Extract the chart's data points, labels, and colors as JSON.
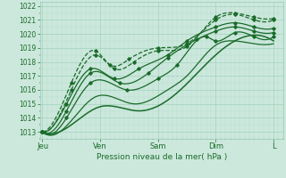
{
  "background_color": "#cce8dc",
  "grid_major_color": "#99ccb8",
  "grid_minor_color": "#b8ddd0",
  "line_color": "#1a6b2a",
  "xlabel": "Pression niveau de la mer( hPa )",
  "yticks": [
    1013,
    1014,
    1015,
    1016,
    1017,
    1018,
    1019,
    1020,
    1021,
    1022
  ],
  "ylim": [
    1012.5,
    1022.3
  ],
  "xtick_labels": [
    "Jeu",
    "Ven",
    "Sam",
    "Dim",
    "L"
  ],
  "xtick_positions": [
    0,
    24,
    48,
    72,
    96
  ],
  "xlim": [
    -1,
    100
  ],
  "curves": [
    {
      "points_x": [
        0,
        12,
        22,
        28,
        36,
        48,
        60,
        72,
        80,
        88,
        96
      ],
      "points_y": [
        1013.0,
        1016.5,
        1018.8,
        1017.8,
        1018.2,
        1019.0,
        1019.3,
        1021.0,
        1021.4,
        1021.0,
        1021.0
      ],
      "ls": "--",
      "lw": 0.9,
      "marker": "D",
      "ms": 1.8
    },
    {
      "points_x": [
        0,
        12,
        22,
        30,
        38,
        48,
        60,
        72,
        80,
        88,
        96
      ],
      "points_y": [
        1013.0,
        1016.0,
        1018.5,
        1017.5,
        1018.0,
        1018.8,
        1019.1,
        1021.2,
        1021.5,
        1021.2,
        1021.1
      ],
      "ls": "--",
      "lw": 0.9,
      "marker": "D",
      "ms": 1.8
    },
    {
      "points_x": [
        0,
        10,
        20,
        30,
        40,
        52,
        60,
        72,
        80,
        88,
        96
      ],
      "points_y": [
        1013.0,
        1015.0,
        1017.5,
        1016.8,
        1017.5,
        1018.5,
        1019.5,
        1020.5,
        1020.8,
        1020.5,
        1020.4
      ],
      "ls": "-",
      "lw": 0.9,
      "marker": "D",
      "ms": 1.8
    },
    {
      "points_x": [
        0,
        10,
        20,
        32,
        44,
        52,
        64,
        72,
        80,
        88,
        96
      ],
      "points_y": [
        1013.0,
        1014.5,
        1017.2,
        1016.5,
        1017.2,
        1018.3,
        1019.6,
        1020.2,
        1020.5,
        1020.2,
        1020.1
      ],
      "ls": "-",
      "lw": 0.9,
      "marker": "D",
      "ms": 1.8
    },
    {
      "points_x": [
        0,
        10,
        20,
        35,
        48,
        56,
        68,
        72,
        80,
        88,
        96
      ],
      "points_y": [
        1013.0,
        1014.0,
        1016.5,
        1016.0,
        1016.8,
        1017.8,
        1019.8,
        1019.5,
        1020.1,
        1019.8,
        1019.8
      ],
      "ls": "-",
      "lw": 0.9,
      "marker": "D",
      "ms": 1.8
    },
    {
      "points_x": [
        0,
        12,
        22,
        38,
        52,
        60,
        72,
        80,
        88,
        96
      ],
      "points_y": [
        1013.0,
        1013.8,
        1015.5,
        1015.0,
        1016.0,
        1017.0,
        1019.2,
        1019.5,
        1019.3,
        1019.3
      ],
      "ls": "-",
      "lw": 0.9,
      "marker": null,
      "ms": 0
    },
    {
      "points_x": [
        0,
        12,
        24,
        40,
        56,
        72,
        84,
        96
      ],
      "points_y": [
        1013.0,
        1013.5,
        1014.8,
        1014.5,
        1015.8,
        1018.5,
        1019.8,
        1019.5
      ],
      "ls": "-",
      "lw": 1.1,
      "marker": null,
      "ms": 0
    }
  ]
}
